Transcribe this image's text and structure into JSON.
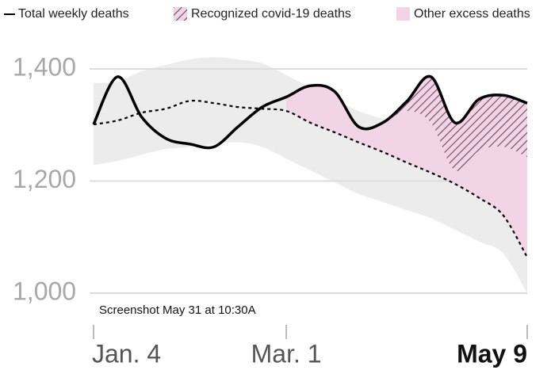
{
  "chart_data": {
    "type": "line",
    "categories": [
      "Jan. 4",
      null,
      null,
      null,
      null,
      null,
      null,
      null,
      "Mar. 1",
      null,
      null,
      null,
      null,
      null,
      null,
      null,
      null,
      null,
      "May 9"
    ],
    "series": [
      {
        "name": "Total weekly deaths",
        "color": "#000000",
        "values": [
          1301,
          1386,
          1314,
          1276,
          1266,
          1261,
          1297,
          1332,
          1350,
          1370,
          1360,
          1297,
          1304,
          1342,
          1386,
          1304,
          1346,
          1353,
          1339
        ]
      },
      {
        "name": "Recognized covid-19 deaths",
        "color": "#6b4a5e",
        "values": [
          null,
          null,
          null,
          null,
          null,
          null,
          null,
          null,
          0,
          0,
          0,
          0,
          0,
          17,
          82,
          85,
          92,
          92,
          96
        ]
      }
    ],
    "expected": {
      "values": [
        1301,
        1308,
        1322,
        1329,
        1343,
        1339,
        1332,
        1329,
        1325,
        1304,
        1287,
        1269,
        1252,
        1233,
        1215,
        1195,
        1170,
        1139,
        1064
      ]
    },
    "band": {
      "color": "#ececec",
      "upper": [
        1375,
        1377,
        1396,
        1407,
        1417,
        1421,
        1417,
        1410,
        1389,
        1367,
        1346,
        1325,
        1311,
        1300,
        1290,
        1280,
        1269,
        1254,
        1219
      ],
      "lower": [
        1229,
        1236,
        1247,
        1257,
        1261,
        1266,
        1269,
        1261,
        1240,
        1219,
        1198,
        1177,
        1163,
        1148,
        1134,
        1113,
        1092,
        1071,
        1000
      ]
    },
    "excess": {
      "name": "Other excess deaths",
      "color": "#f2d4e7"
    },
    "ylim": [
      1000,
      1400
    ],
    "yticks": [
      {
        "value": 1000,
        "label": "1,000"
      },
      {
        "value": 1200,
        "label": "1,200"
      },
      {
        "value": 1400,
        "label": "1,400"
      }
    ],
    "grid": true,
    "annotation": "Screenshot May 31 at 10:30A"
  }
}
